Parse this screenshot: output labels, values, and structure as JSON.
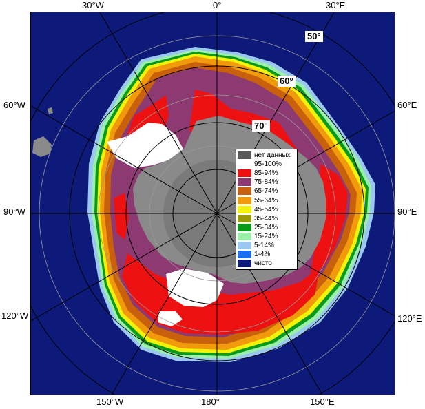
{
  "longitude_labels": {
    "top_w30": "30°W",
    "top_0": "0°",
    "top_e30": "30°E",
    "left_w60": "60°W",
    "left_w90": "90°W",
    "left_w120": "120°W",
    "right_e60": "60°E",
    "right_e90": "90°E",
    "right_e120": "120°E",
    "bottom_w150": "150°W",
    "bottom_180": "180°",
    "bottom_e150": "150°E"
  },
  "latitude_labels": {
    "lat50": "50°",
    "lat60": "60°",
    "lat70": "70°"
  },
  "legend": [
    {
      "label": "нет данных",
      "color": "#5a5a5a"
    },
    {
      "label": "95-100%",
      "color": "#ffffff"
    },
    {
      "label": "85-94%",
      "color": "#ee1111"
    },
    {
      "label": "75-84%",
      "color": "#8e3a72"
    },
    {
      "label": "65-74%",
      "color": "#c8600c"
    },
    {
      "label": "55-64%",
      "color": "#f09a0c"
    },
    {
      "label": "45-54%",
      "color": "#f2f20a"
    },
    {
      "label": "35-44%",
      "color": "#9a9a08"
    },
    {
      "label": "25-34%",
      "color": "#0a9a1a"
    },
    {
      "label": "15-24%",
      "color": "#9af0a8"
    },
    {
      "label": "5-14%",
      "color": "#9ac8f0"
    },
    {
      "label": "1-4%",
      "color": "#1a6cf0"
    },
    {
      "label": "чисто",
      "color": "#0d1a7a"
    }
  ],
  "colors": {
    "ocean": "#0d1a7a",
    "land": "#8a8a8a",
    "ice_shelf": "#6a6a6a",
    "grid": "#9a9a9a",
    "circle": "#000000"
  }
}
